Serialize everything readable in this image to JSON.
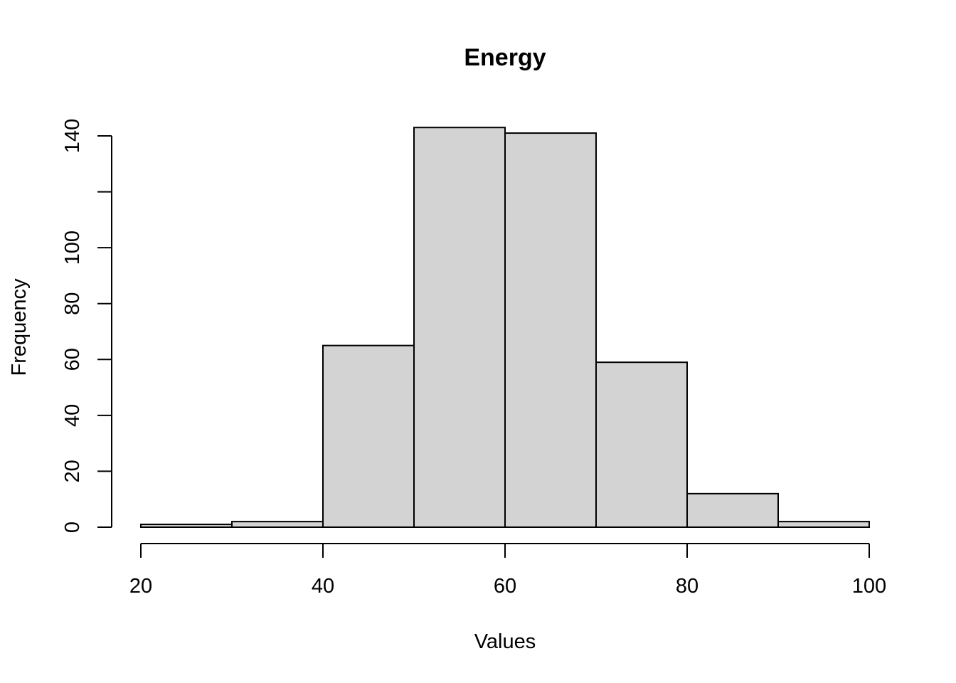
{
  "chart_data": {
    "type": "bar",
    "title": "Energy",
    "xlabel": "Values",
    "ylabel": "Frequency",
    "bins": [
      {
        "start": 20,
        "end": 30,
        "count": 1
      },
      {
        "start": 30,
        "end": 40,
        "count": 2
      },
      {
        "start": 40,
        "end": 50,
        "count": 65
      },
      {
        "start": 50,
        "end": 60,
        "count": 143
      },
      {
        "start": 60,
        "end": 70,
        "count": 141
      },
      {
        "start": 70,
        "end": 80,
        "count": 59
      },
      {
        "start": 80,
        "end": 90,
        "count": 12
      },
      {
        "start": 90,
        "end": 100,
        "count": 2
      }
    ],
    "x_ticks": [
      20,
      40,
      60,
      80,
      100
    ],
    "y_ticks": [
      0,
      20,
      40,
      60,
      80,
      100,
      120,
      140
    ],
    "y_tick_labels": [
      "0",
      "20",
      "40",
      "60",
      "80",
      "100",
      "",
      "140"
    ],
    "xlim": [
      20,
      100
    ],
    "ylim": [
      0,
      140
    ],
    "bar_fill": "#d3d3d3",
    "bar_stroke": "#000000",
    "grid": false,
    "legend": "none"
  }
}
